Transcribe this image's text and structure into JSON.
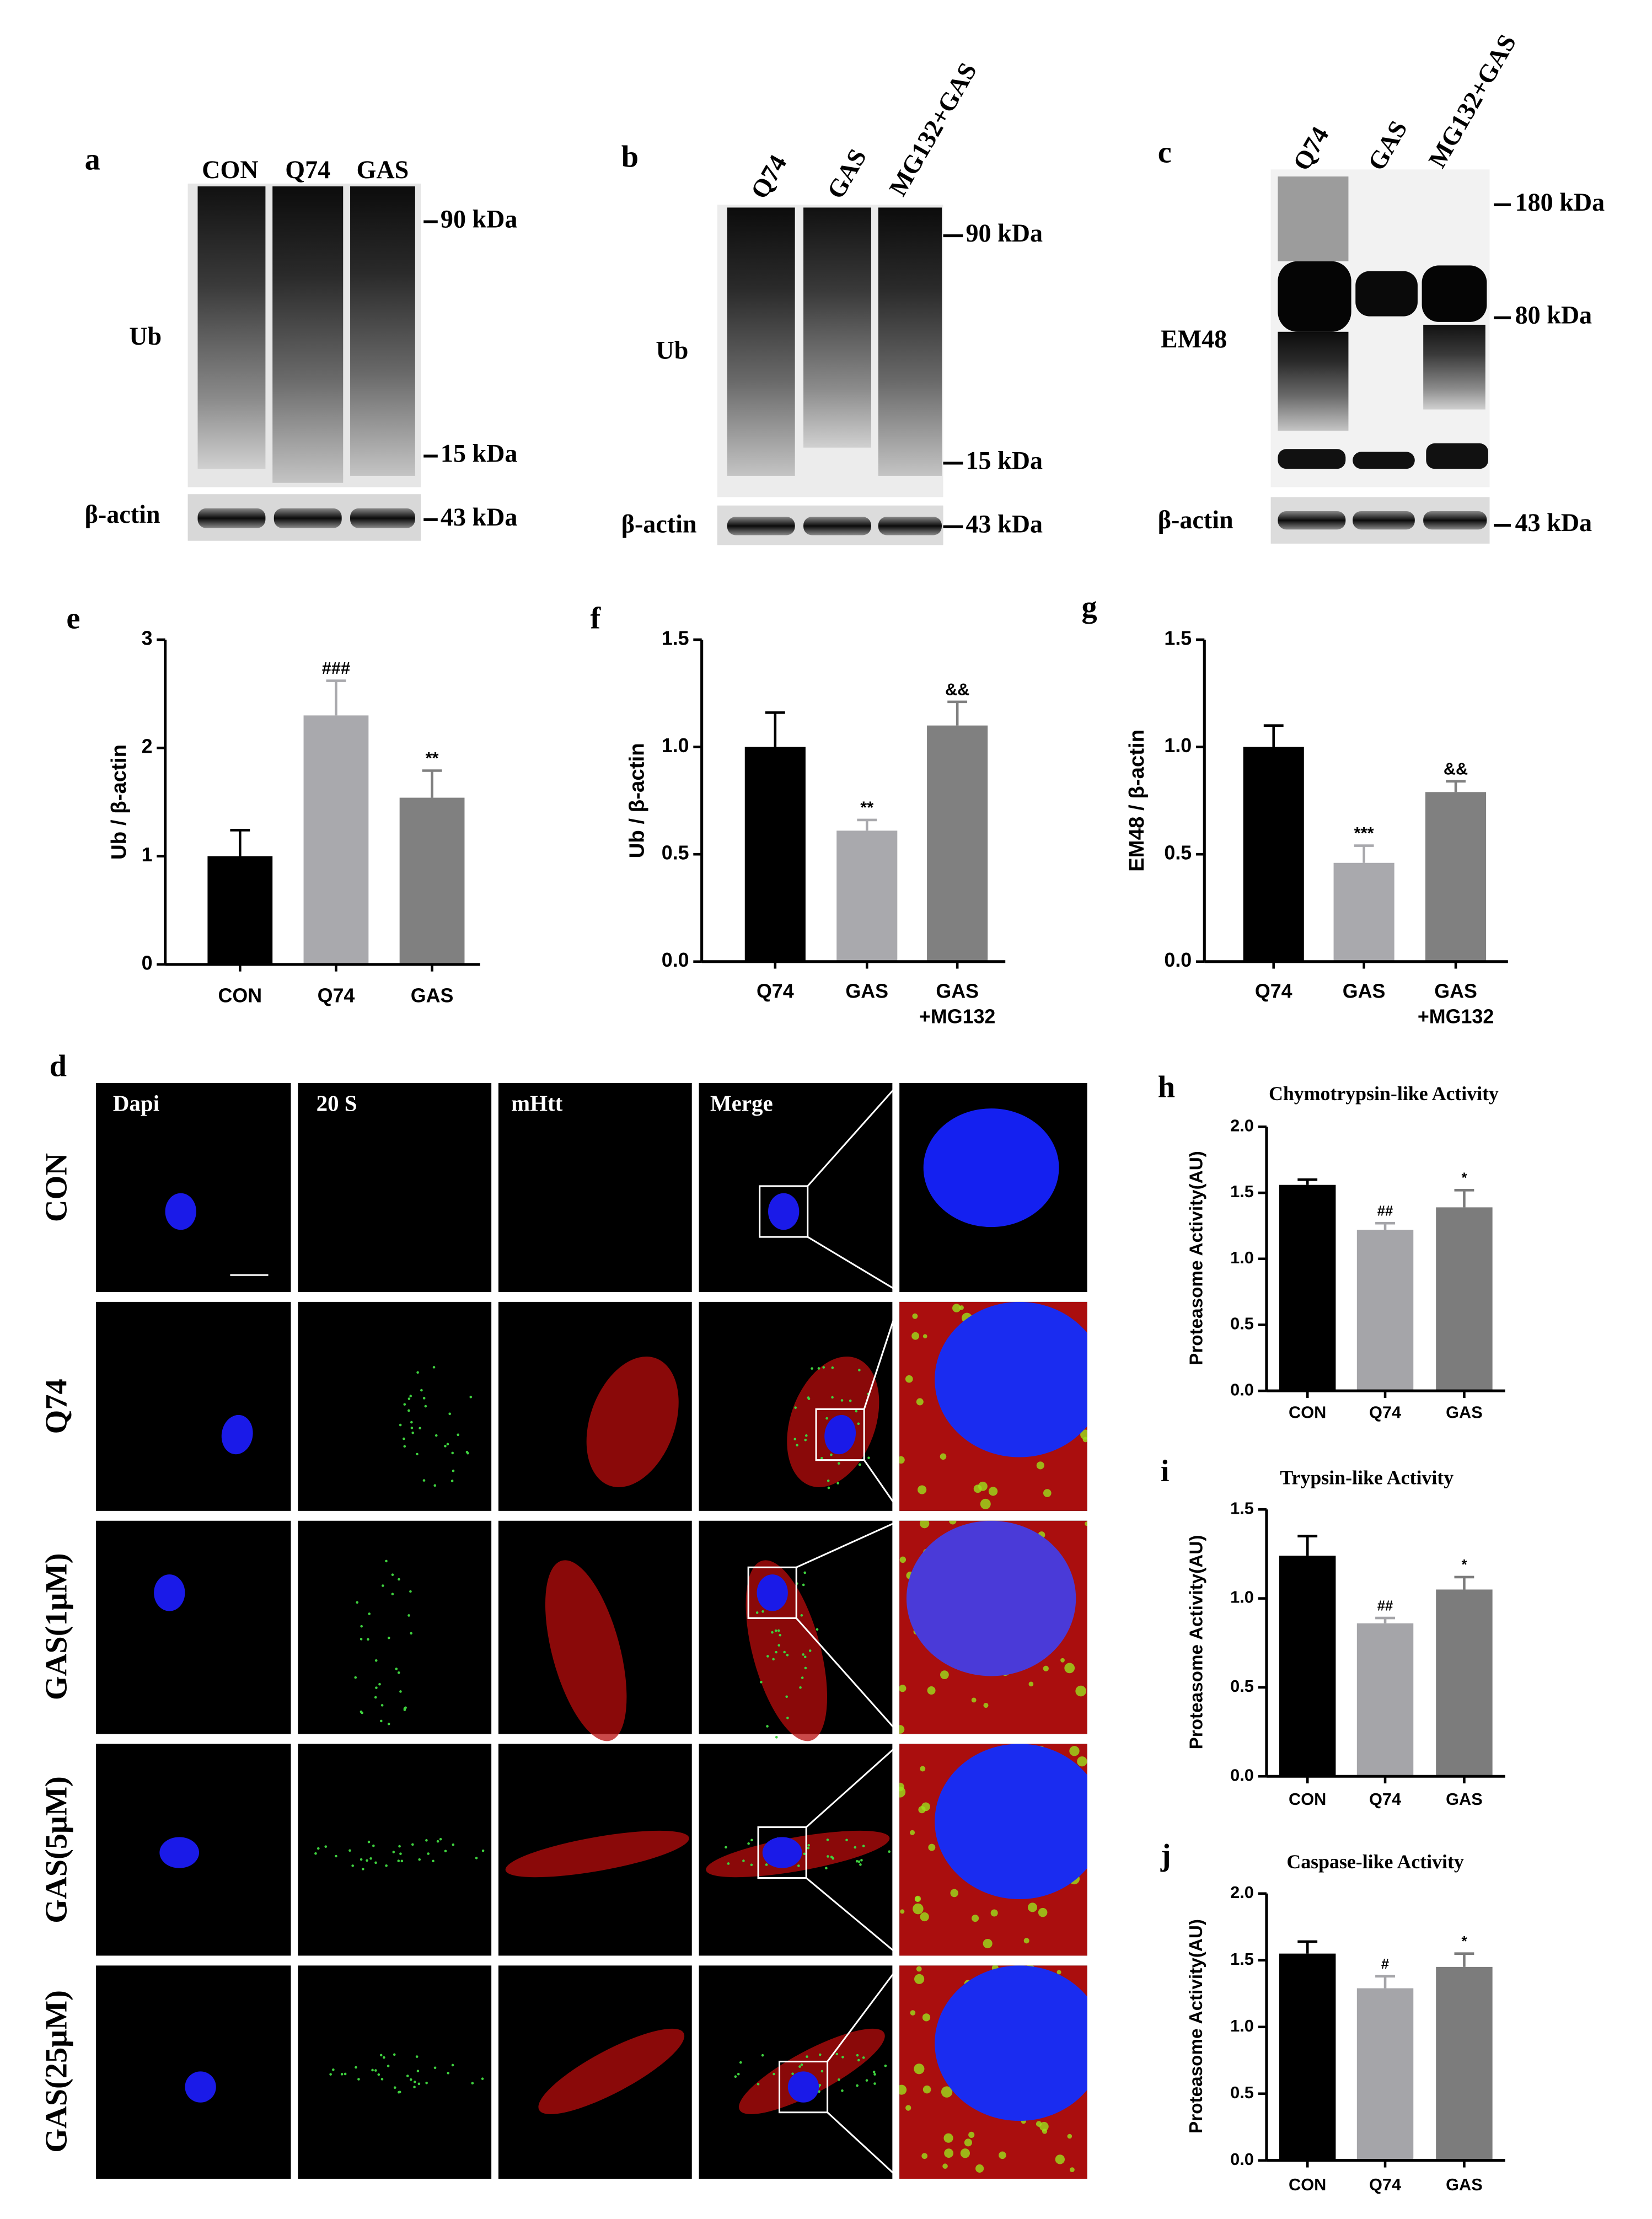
{
  "blots": [
    {
      "panel": "a",
      "lanes": [
        "CON",
        "Q74",
        "GAS"
      ],
      "target": "Ub",
      "markers": [
        "90 kDa",
        "15 kDa"
      ],
      "loading_control": "β-actin",
      "loading_marker": "43 kDa"
    },
    {
      "panel": "b",
      "lanes": [
        "Q74",
        "GAS",
        "MG132+GAS"
      ],
      "target": "Ub",
      "markers": [
        "90 kDa",
        "15 kDa"
      ],
      "loading_control": "β-actin",
      "loading_marker": "43 kDa"
    },
    {
      "panel": "c",
      "lanes": [
        "Q74",
        "GAS",
        "MG132+GAS"
      ],
      "target": "EM48",
      "markers": [
        "180 kDa",
        "80 kDa"
      ],
      "loading_control": "β-actin",
      "loading_marker": "43 kDa"
    }
  ],
  "imaging": {
    "panel": "d",
    "columns": [
      "Dapi",
      "20 S",
      "mHtt",
      "Merge"
    ],
    "rows": [
      "CON",
      "Q74",
      "GAS(1μM)",
      "GAS(5μM)",
      "GAS(25μM)"
    ]
  },
  "chart_data": [
    {
      "type": "bar",
      "panel": "e",
      "y_label": "Ub / β-actin",
      "categories": [
        "CON",
        "Q74",
        "GAS"
      ],
      "values": [
        1.0,
        2.3,
        1.54
      ],
      "errors": [
        0.24,
        0.32,
        0.25
      ],
      "annotations": [
        null,
        "###",
        "**"
      ],
      "colors": [
        "#000000",
        "#a9a9ad",
        "#808080"
      ],
      "ylim": [
        0,
        3
      ],
      "yticks": [
        0,
        1,
        2,
        3
      ]
    },
    {
      "type": "bar",
      "panel": "f",
      "y_label": "Ub / β-actin",
      "categories": [
        "Q74",
        "GAS",
        [
          "GAS",
          "+MG132"
        ]
      ],
      "values": [
        1.0,
        0.61,
        1.1
      ],
      "errors": [
        0.16,
        0.05,
        0.11
      ],
      "annotations": [
        null,
        "**",
        "&&"
      ],
      "colors": [
        "#000000",
        "#a9a9ad",
        "#808080"
      ],
      "ylim": [
        0,
        1.5
      ],
      "yticks": [
        {
          "value": 0,
          "label": "0.0"
        },
        0.5,
        {
          "value": 1,
          "label": "1.0"
        },
        1.5
      ]
    },
    {
      "type": "bar",
      "panel": "g",
      "y_label": "EM48 / β-actin",
      "categories": [
        "Q74",
        "GAS",
        [
          "GAS",
          "+MG132"
        ]
      ],
      "values": [
        1.0,
        0.46,
        0.79
      ],
      "errors": [
        0.1,
        0.08,
        0.05
      ],
      "annotations": [
        null,
        "***",
        "&&"
      ],
      "colors": [
        "#000000",
        "#a9a9ad",
        "#808080"
      ],
      "ylim": [
        0,
        1.5
      ],
      "yticks": [
        {
          "value": 0,
          "label": "0.0"
        },
        0.5,
        {
          "value": 1,
          "label": "1.0"
        },
        1.5
      ]
    },
    {
      "type": "bar",
      "panel": "h",
      "title": "Chymotrypsin-like Activity",
      "y_label": "Proteasome Activity(AU)",
      "categories": [
        "CON",
        "Q74",
        "GAS"
      ],
      "values": [
        1.56,
        1.22,
        1.39
      ],
      "errors": [
        0.04,
        0.05,
        0.13
      ],
      "annotations": [
        null,
        "##",
        "*"
      ],
      "colors": [
        "#000000",
        "#a5a5a9",
        "#7c7c7c"
      ],
      "ylim": [
        0,
        2
      ],
      "yticks": [
        {
          "value": 0,
          "label": "0.0"
        },
        0.5,
        {
          "value": 1,
          "label": "1.0"
        },
        1.5,
        {
          "value": 2,
          "label": "2.0"
        }
      ]
    },
    {
      "type": "bar",
      "panel": "i",
      "title": "Trypsin-like Activity",
      "y_label": "Proteasome Activity(AU)",
      "categories": [
        "CON",
        "Q74",
        "GAS"
      ],
      "values": [
        1.24,
        0.86,
        1.05
      ],
      "errors": [
        0.11,
        0.03,
        0.07
      ],
      "annotations": [
        null,
        "##",
        "*"
      ],
      "colors": [
        "#000000",
        "#a5a5a9",
        "#7c7c7c"
      ],
      "ylim": [
        0,
        1.5
      ],
      "yticks": [
        {
          "value": 0,
          "label": "0.0"
        },
        0.5,
        {
          "value": 1,
          "label": "1.0"
        },
        1.5
      ]
    },
    {
      "type": "bar",
      "panel": "j",
      "title": "Caspase-like Activity",
      "y_label": "Proteasome Activity(AU)",
      "categories": [
        "CON",
        "Q74",
        "GAS"
      ],
      "values": [
        1.55,
        1.29,
        1.45
      ],
      "errors": [
        0.09,
        0.09,
        0.1
      ],
      "annotations": [
        null,
        "#",
        "*"
      ],
      "colors": [
        "#000000",
        "#a5a5a9",
        "#7c7c7c"
      ],
      "ylim": [
        0,
        2
      ],
      "yticks": [
        {
          "value": 0,
          "label": "0.0"
        },
        0.5,
        {
          "value": 1,
          "label": "1.0"
        },
        1.5,
        {
          "value": 2,
          "label": "2.0"
        }
      ]
    }
  ]
}
